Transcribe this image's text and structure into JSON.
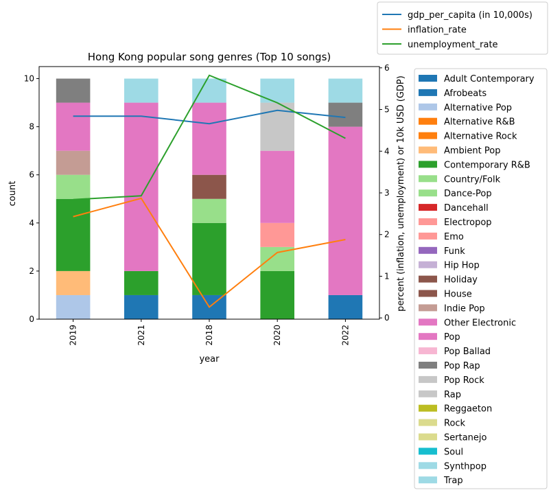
{
  "chart_data": {
    "type": "bar",
    "stacked": true,
    "title": "Hong Kong popular song genres (Top 10 songs)",
    "xlabel": "year",
    "ylabel": "count",
    "y2label": "percent (inflation, unemployment) or 10k USD (GDP)",
    "categories": [
      "2019",
      "2021",
      "2018",
      "2020",
      "2022"
    ],
    "ylim": [
      0,
      10.5
    ],
    "y2lim": [
      -0.03,
      6.03
    ],
    "yticks": [
      "0",
      "2",
      "4",
      "6",
      "8",
      "10"
    ],
    "y2ticks": [
      "0",
      "1",
      "2",
      "3",
      "4",
      "5",
      "6"
    ],
    "series": [
      {
        "name": "Adult Contemporary",
        "color": "#1f77b4",
        "values": [
          0,
          0,
          0,
          0,
          0
        ]
      },
      {
        "name": "Afrobeats",
        "color": "#1f77b4",
        "values": [
          0,
          1,
          1,
          0,
          1
        ]
      },
      {
        "name": "Alternative Pop",
        "color": "#aec7e8",
        "values": [
          1,
          0,
          0,
          0,
          0
        ]
      },
      {
        "name": "Alternative R&B",
        "color": "#ff7f0e",
        "values": [
          0,
          0,
          0,
          0,
          0
        ]
      },
      {
        "name": "Alternative Rock",
        "color": "#ff7f0e",
        "values": [
          0,
          0,
          0,
          0,
          0
        ]
      },
      {
        "name": "Ambient Pop",
        "color": "#ffbb78",
        "values": [
          1,
          0,
          0,
          0,
          0
        ]
      },
      {
        "name": "Contemporary R&B",
        "color": "#2ca02c",
        "values": [
          3,
          1,
          3,
          2,
          0
        ]
      },
      {
        "name": "Country/Folk",
        "color": "#98df8a",
        "values": [
          1,
          0,
          0,
          1,
          0
        ]
      },
      {
        "name": "Dance-Pop",
        "color": "#98df8a",
        "values": [
          0,
          0,
          1,
          0,
          0
        ]
      },
      {
        "name": "Dancehall",
        "color": "#d62728",
        "values": [
          0,
          0,
          0,
          0,
          0
        ]
      },
      {
        "name": "Electropop",
        "color": "#ff9896",
        "values": [
          0,
          0,
          0,
          1,
          0
        ]
      },
      {
        "name": "Emo",
        "color": "#ff9896",
        "values": [
          0,
          0,
          0,
          0,
          0
        ]
      },
      {
        "name": "Funk",
        "color": "#9467bd",
        "values": [
          0,
          0,
          0,
          0,
          0
        ]
      },
      {
        "name": "Hip Hop",
        "color": "#c5b0d5",
        "values": [
          0,
          0,
          0,
          0,
          0
        ]
      },
      {
        "name": "Holiday",
        "color": "#8c564b",
        "values": [
          0,
          0,
          1,
          0,
          0
        ]
      },
      {
        "name": "House",
        "color": "#8c564b",
        "values": [
          0,
          0,
          0,
          0,
          0
        ]
      },
      {
        "name": "Indie Pop",
        "color": "#c49c94",
        "values": [
          1,
          0,
          0,
          0,
          0
        ]
      },
      {
        "name": "Other Electronic",
        "color": "#e377c2",
        "values": [
          2,
          7,
          3,
          3,
          7
        ]
      },
      {
        "name": "Pop",
        "color": "#e377c2",
        "values": [
          0,
          0,
          0,
          0,
          0
        ]
      },
      {
        "name": "Pop Ballad",
        "color": "#f7b6d2",
        "values": [
          0,
          0,
          0,
          0,
          0
        ]
      },
      {
        "name": "Pop Rap",
        "color": "#7f7f7f",
        "values": [
          1,
          0,
          0,
          0,
          1
        ]
      },
      {
        "name": "Pop Rock",
        "color": "#c7c7c7",
        "values": [
          0,
          0,
          0,
          2,
          0
        ]
      },
      {
        "name": "Rap",
        "color": "#c7c7c7",
        "values": [
          0,
          0,
          0,
          0,
          0
        ]
      },
      {
        "name": "Reggaeton",
        "color": "#bcbd22",
        "values": [
          0,
          0,
          0,
          0,
          0
        ]
      },
      {
        "name": "Rock",
        "color": "#dbdb8d",
        "values": [
          0,
          0,
          0,
          0,
          0
        ]
      },
      {
        "name": "Sertanejo",
        "color": "#dbdb8d",
        "values": [
          0,
          0,
          0,
          0,
          0
        ]
      },
      {
        "name": "Soul",
        "color": "#17becf",
        "values": [
          0,
          0,
          0,
          0,
          0
        ]
      },
      {
        "name": "Synthpop",
        "color": "#9edae5",
        "values": [
          0,
          1,
          1,
          1,
          1
        ]
      },
      {
        "name": "Trap",
        "color": "#9edae5",
        "values": [
          0,
          0,
          0,
          0,
          0
        ]
      }
    ],
    "lines": [
      {
        "name": "gdp_per_capita (in 10,000s)",
        "color": "#1f77b4",
        "values": [
          4.84,
          4.84,
          4.66,
          4.98,
          4.81
        ]
      },
      {
        "name": "inflation_rate",
        "color": "#ff7f0e",
        "values": [
          2.43,
          2.87,
          0.26,
          1.57,
          1.88
        ]
      },
      {
        "name": "unemployment_rate",
        "color": "#2ca02c",
        "values": [
          2.84,
          2.93,
          5.82,
          5.16,
          4.31
        ]
      }
    ],
    "legend_placement": "right",
    "line_legend_placement": "top-right",
    "grid": false
  }
}
